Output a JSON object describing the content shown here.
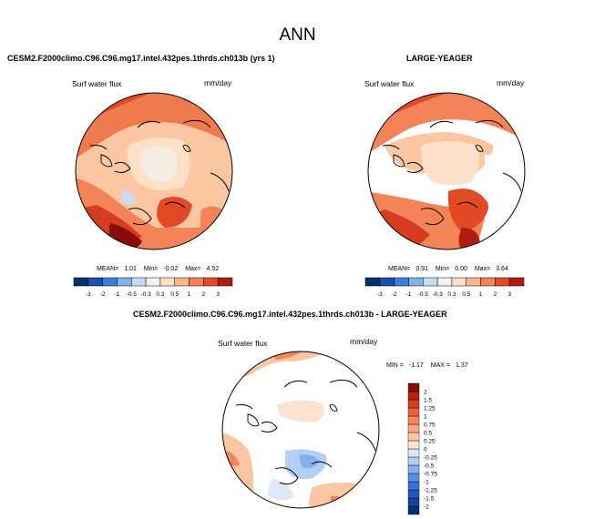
{
  "title": "ANN",
  "panels": [
    {
      "case_title": "CESM2.F2000climo.C96.C96.mg17.intel.432pes.1thrds.ch013b (yrs 1)",
      "variable": "Surf water flux",
      "units": "mm/day",
      "stats": {
        "mean_label": "MEAN=",
        "mean": "1.01",
        "min_label": "Min=",
        "min": "-0.02",
        "max_label": "Max=",
        "max": "4.52"
      }
    },
    {
      "case_title": "LARGE-YEAGER",
      "variable": "Surf water flux",
      "units": "mm/day",
      "stats": {
        "mean_label": "MEAN=",
        "mean": "0.91",
        "min_label": "Min=",
        "min": "0.00",
        "max_label": "Max=",
        "max": "3.64"
      }
    },
    {
      "case_title": "CESM2.F2000climo.C96.C96.mg17.intel.432pes.1thrds.ch013b - LARGE-YEAGER",
      "variable": "Surf water flux",
      "units": "mm/day",
      "stats": {
        "min_label": "MIN =",
        "min": "-1.17",
        "max_label": "MAX =",
        "max": "1.37"
      }
    }
  ],
  "chart_data": [
    {
      "type": "heatmap",
      "projection": "north-polar-stereographic",
      "title": "CESM2.F2000climo.C96.C96.mg17.intel.432pes.1thrds.ch013b (yrs 1)",
      "variable": "Surf water flux",
      "units": "mm/day",
      "mean": 1.01,
      "min": -0.02,
      "max": 4.52,
      "colorbar": {
        "orientation": "horizontal",
        "levels": [
          -3,
          -2,
          -1,
          -0.5,
          -0.3,
          0.3,
          0.5,
          1,
          2,
          3
        ],
        "labels": [
          "-3",
          "-2",
          "-1",
          "-0.5",
          "-0.3",
          "0.3",
          "0.5",
          "1",
          "2",
          "3"
        ],
        "colors": [
          "#08306b",
          "#1a50b0",
          "#3a7fd8",
          "#7fb2ec",
          "#c7ddf6",
          "#f2f2f2",
          "#fde0c8",
          "#fbb690",
          "#f48457",
          "#e24a26",
          "#b01d10"
        ]
      }
    },
    {
      "type": "heatmap",
      "projection": "north-polar-stereographic",
      "title": "LARGE-YEAGER",
      "variable": "Surf water flux",
      "units": "mm/day",
      "mean": 0.91,
      "min": 0.0,
      "max": 3.64,
      "colorbar": {
        "orientation": "horizontal",
        "levels": [
          -3,
          -2,
          -1,
          -0.5,
          -0.3,
          0.3,
          0.5,
          1,
          2,
          3
        ],
        "labels": [
          "-3",
          "-2",
          "-1",
          "-0.5",
          "-0.3",
          "0.3",
          "0.5",
          "1",
          "2",
          "3"
        ],
        "colors": [
          "#08306b",
          "#1a50b0",
          "#3a7fd8",
          "#7fb2ec",
          "#c7ddf6",
          "#f2f2f2",
          "#fde0c8",
          "#fbb690",
          "#f48457",
          "#e24a26",
          "#b01d10"
        ]
      }
    },
    {
      "type": "heatmap",
      "projection": "north-polar-stereographic",
      "title": "CESM2.F2000climo.C96.C96.mg17.intel.432pes.1thrds.ch013b - LARGE-YEAGER",
      "variable": "Surf water flux",
      "units": "mm/day",
      "min": -1.17,
      "max": 1.37,
      "colorbar": {
        "orientation": "vertical",
        "levels": [
          -2,
          -1.5,
          -1.25,
          -1,
          -0.75,
          -0.5,
          -0.25,
          0,
          0.25,
          0.5,
          0.75,
          1,
          1.25,
          1.5,
          2
        ],
        "labels": [
          "-2",
          "-1.5",
          "-1.25",
          "-1",
          "-0.75",
          "-0.5",
          "-0.25",
          "0",
          "0.25",
          "0.5",
          "0.75",
          "1",
          "1.25",
          "1.5",
          "2"
        ],
        "colors": [
          "#08306b",
          "#13449a",
          "#2158c0",
          "#3a74d6",
          "#5a90e2",
          "#86b0ec",
          "#b4cff4",
          "#dde9f8",
          "#fbe3cf",
          "#fbc7a3",
          "#f8a87b",
          "#f3875a",
          "#e8633c",
          "#d73b20",
          "#bb1f10",
          "#8a0c08"
        ]
      }
    }
  ]
}
